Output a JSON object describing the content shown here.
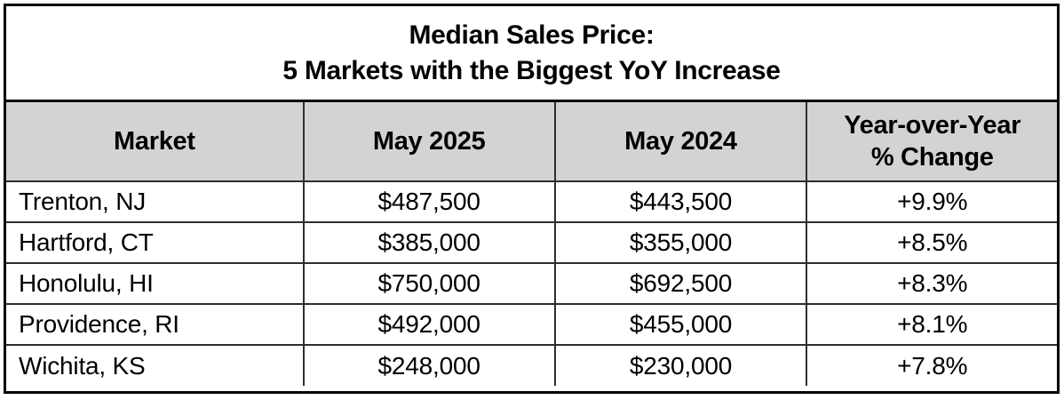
{
  "table": {
    "title_line1": "Median Sales Price:",
    "title_line2": "5 Markets with the Biggest YoY Increase",
    "header": {
      "market": "Market",
      "may_2025": "May 2025",
      "may_2024": "May 2024",
      "yoy_line1": "Year-over-Year",
      "yoy_line2": "% Change"
    },
    "rows": [
      {
        "market": "Trenton, NJ",
        "may_2025": "$487,500",
        "may_2024": "$443,500",
        "yoy_change": "+9.9%"
      },
      {
        "market": "Hartford, CT",
        "may_2025": "$385,000",
        "may_2024": "$355,000",
        "yoy_change": "+8.5%"
      },
      {
        "market": "Honolulu, HI",
        "may_2025": "$750,000",
        "may_2024": "$692,500",
        "yoy_change": "+8.3%"
      },
      {
        "market": "Providence, RI",
        "may_2025": "$492,000",
        "may_2024": "$455,000",
        "yoy_change": "+8.1%"
      },
      {
        "market": "Wichita, KS",
        "may_2025": "$248,000",
        "may_2024": "$230,000",
        "yoy_change": "+7.8%"
      }
    ]
  },
  "colors": {
    "header_bg": "#d3d3d3",
    "outer_border": "#000000",
    "inner_border": "#2e2e2e",
    "text": "#000000",
    "row_bg": "#ffffff"
  },
  "chart_data": {
    "type": "table",
    "title": "Median Sales Price: 5 Markets with the Biggest YoY Increase",
    "columns": [
      "Market",
      "May 2025",
      "May 2024",
      "Year-over-Year % Change"
    ],
    "rows": [
      [
        "Trenton, NJ",
        "$487,500",
        "$443,500",
        "+9.9%"
      ],
      [
        "Hartford, CT",
        "$385,000",
        "$355,000",
        "+8.5%"
      ],
      [
        "Honolulu, HI",
        "$750,000",
        "$692,500",
        "+8.3%"
      ],
      [
        "Providence, RI",
        "$492,000",
        "$455,000",
        "+8.1%"
      ],
      [
        "Wichita, KS",
        "$248,000",
        "$230,000",
        "+7.8%"
      ]
    ]
  }
}
